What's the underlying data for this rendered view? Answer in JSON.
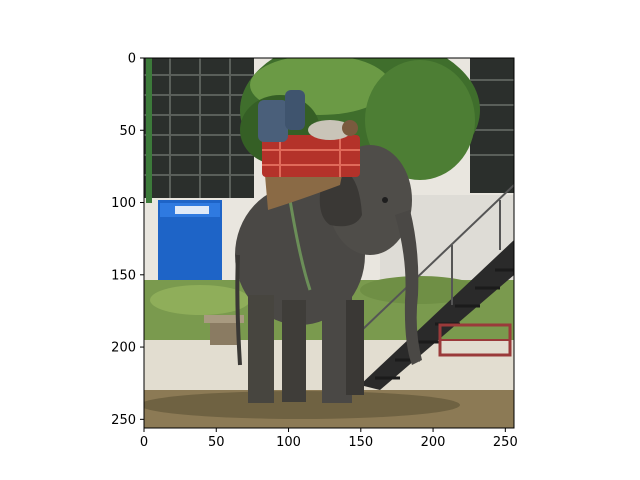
{
  "figure": {
    "subject_icons": [
      "elephant-icon",
      "rider-icon",
      "seat-icon",
      "staircase-icon",
      "kiosk-icon",
      "tree-icon"
    ],
    "colors": {
      "axis": "#000000",
      "sky": "#e9e6df",
      "canopy": "#3f6e2c",
      "canopy_light": "#6b9a45",
      "truss": "#2b2f2c",
      "kiosk": "#1e64c7",
      "grass": "#7a9a4e",
      "ground": "#8c7a55",
      "elephant": "#4a4845",
      "elephant_shadow": "#2f2e2c",
      "seat": "#b4322a",
      "stairs": "#2a2a2a"
    }
  },
  "axes": {
    "x_ticks": [
      "0",
      "50",
      "100",
      "150",
      "200",
      "250"
    ],
    "y_ticks": [
      "0",
      "50",
      "100",
      "150",
      "200",
      "250"
    ],
    "x_range": [
      0,
      256
    ],
    "y_range": [
      256,
      0
    ]
  }
}
